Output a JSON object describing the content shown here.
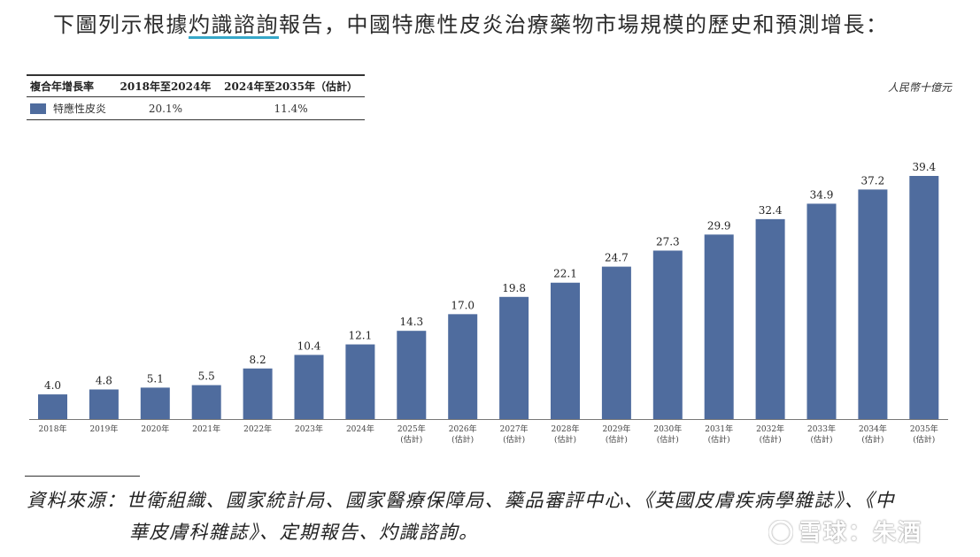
{
  "intro": {
    "before": "下圖列示根據",
    "highlight": "灼識諮詢",
    "after": "報告，中國特應性皮炎治療藥物市場規模的歷史和預測增長："
  },
  "cagr_table": {
    "headers": [
      "複合年增長率",
      "2018年至2024年",
      "2024年至2035年（估計）"
    ],
    "row_label": "特應性皮炎",
    "row_values": [
      "20.1%",
      "11.4%"
    ]
  },
  "unit": "人民幣十億元",
  "chart_data": {
    "type": "bar",
    "categories": [
      "2018年",
      "2019年",
      "2020年",
      "2021年",
      "2022年",
      "2023年",
      "2024年",
      "2025年",
      "2026年",
      "2027年",
      "2028年",
      "2029年",
      "2030年",
      "2031年",
      "2032年",
      "2033年",
      "2034年",
      "2035年"
    ],
    "category_sub": [
      "",
      "",
      "",
      "",
      "",
      "",
      "",
      "(估計)",
      "(估計)",
      "(估計)",
      "(估計)",
      "(估計)",
      "(估計)",
      "(估計)",
      "(估計)",
      "(估計)",
      "(估計)",
      "(估計)"
    ],
    "series": [
      {
        "name": "特應性皮炎",
        "values": [
          4.0,
          4.8,
          5.1,
          5.5,
          8.2,
          10.4,
          12.1,
          14.3,
          17.0,
          19.8,
          22.1,
          24.7,
          27.3,
          29.9,
          32.4,
          34.9,
          37.2,
          39.4
        ]
      }
    ],
    "value_labels": [
      "4.0",
      "4.8",
      "5.1",
      "5.5",
      "8.2",
      "10.4",
      "12.1",
      "14.3",
      "17.0",
      "19.8",
      "22.1",
      "24.7",
      "27.3",
      "29.9",
      "32.4",
      "34.9",
      "37.2",
      "39.4"
    ],
    "bar_color": "#4f6c9e",
    "ylim": [
      0,
      39.4
    ],
    "grid": false,
    "legend": "top-left"
  },
  "source": {
    "line1": "資料來源：世衛組織、國家統計局、國家醫療保障局、藥品審評中心、《英國皮膚疾病學雜誌》、《中",
    "line2": "華皮膚科雜誌》、定期報告、灼識諮詢。"
  },
  "watermark": "雪球：朱酒"
}
